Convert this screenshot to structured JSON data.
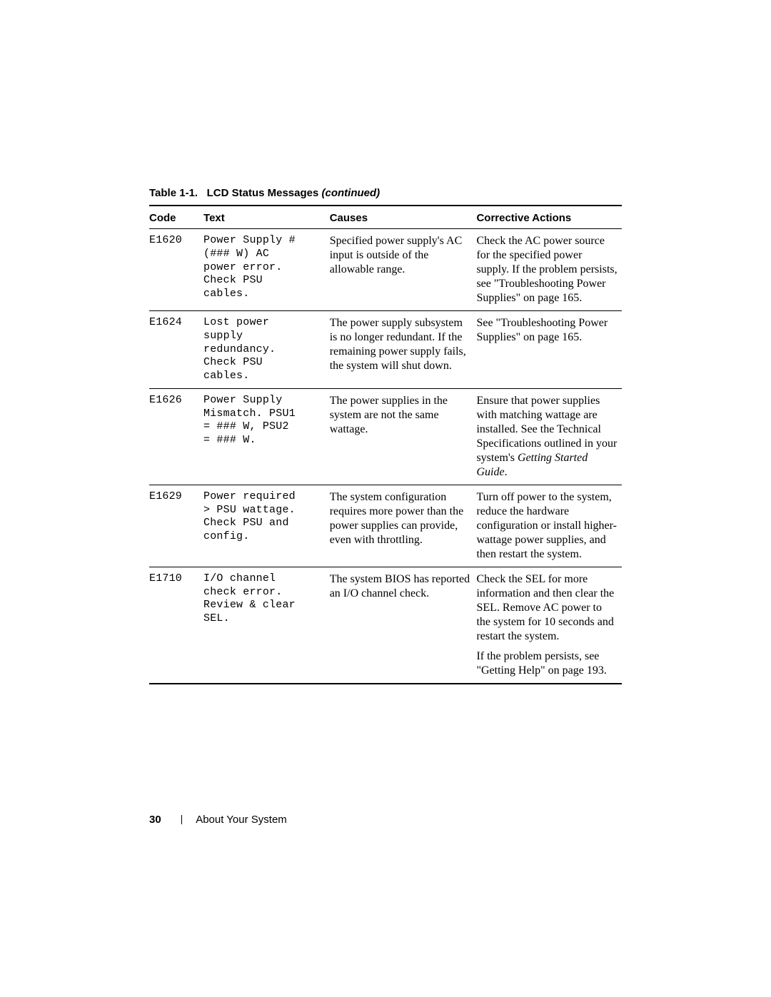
{
  "caption": {
    "prefix": "Table 1-1.",
    "title": "LCD Status Messages",
    "continued": "(continued)"
  },
  "columns": {
    "code": "Code",
    "text": "Text",
    "causes": "Causes",
    "action": "Corrective Actions"
  },
  "rows": [
    {
      "code": "E1620",
      "text": "Power Supply #\n(### W) AC\npower error.\nCheck PSU\ncables.",
      "causes": "Specified power supply's AC input is outside of the allowable range.",
      "action": "Check the AC power source for the specified power supply. If the problem persists, see \"Troubleshooting Power Supplies\" on page 165."
    },
    {
      "code": "E1624",
      "text": "Lost power\nsupply\nredundancy.\nCheck PSU\ncables.",
      "causes": "The power supply subsystem is no longer redundant. If the remaining power supply fails, the system will shut down.",
      "action": "See \"Troubleshooting Power Supplies\" on page 165."
    },
    {
      "code": "E1626",
      "text": "Power Supply\nMismatch. PSU1\n= ### W, PSU2\n= ### W.",
      "causes": "The power supplies in the system are not the same wattage.",
      "action_prefix": "Ensure that power supplies with matching wattage are installed. See the Technical Specifications outlined in your system's ",
      "action_italic": "Getting Started Guide",
      "action_suffix": "."
    },
    {
      "code": "E1629",
      "text": "Power required\n> PSU wattage.\nCheck PSU and\nconfig.",
      "causes": "The system configuration requires more power than the power supplies can provide, even with throttling.",
      "action": "Turn off power to the system, reduce the hardware configuration or install higher-wattage power supplies, and then restart the system."
    },
    {
      "code": "E1710",
      "text": "I/O channel\ncheck error.\nReview & clear\nSEL.",
      "causes": "The system BIOS has reported an I/O channel check.",
      "action": "Check the SEL for more information and then clear the SEL. Remove AC power to the system for 10 seconds and restart the system.",
      "action_extra": "If the problem persists, see \"Getting Help\" on page 193."
    }
  ],
  "footer": {
    "pagenum": "30",
    "section": "About Your System"
  }
}
